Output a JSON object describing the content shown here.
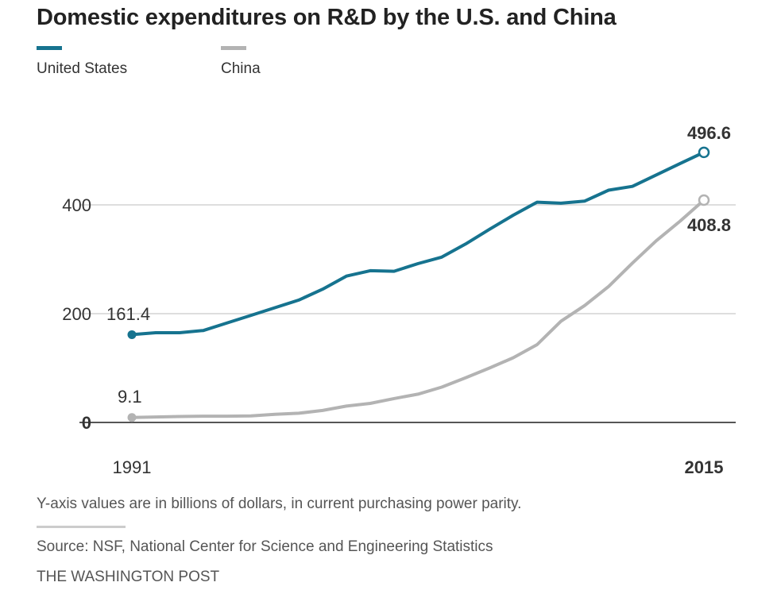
{
  "colors": {
    "us": "#16738f",
    "china": "#b3b3b3"
  },
  "chart_data": {
    "type": "line",
    "title": "Domestic expenditures on R&D by the U.S. and China",
    "x": [
      1991,
      1992,
      1993,
      1994,
      1995,
      1996,
      1997,
      1998,
      1999,
      2000,
      2001,
      2002,
      2003,
      2004,
      2005,
      2006,
      2007,
      2008,
      2009,
      2010,
      2011,
      2012,
      2013,
      2014,
      2015
    ],
    "series": [
      {
        "name": "United States",
        "values": [
          161.4,
          165.0,
          165.0,
          169.0,
          183.0,
          197.0,
          211.0,
          225.0,
          245.0,
          269.0,
          279.0,
          278.0,
          292.0,
          304.0,
          328.0,
          355.0,
          381.0,
          405.0,
          403.0,
          407.0,
          427.0,
          434.0,
          455.0,
          476.0,
          496.6
        ]
      },
      {
        "name": "China",
        "values": [
          9.1,
          10.0,
          11.0,
          11.5,
          11.5,
          12.0,
          15.0,
          17.0,
          22.0,
          30.0,
          35.0,
          44.0,
          52.0,
          65.0,
          82.0,
          100.0,
          119.0,
          143.0,
          186.0,
          215.0,
          250.0,
          293.0,
          334.0,
          370.0,
          408.8
        ]
      }
    ],
    "start_labels": [
      "161.4",
      "9.1"
    ],
    "end_labels": [
      "496.6",
      "408.8"
    ],
    "xticks": [
      "1991",
      "2015"
    ],
    "yticks": [
      0,
      200,
      400
    ],
    "ytick_labels": [
      "0",
      "200",
      "400"
    ],
    "ylim": [
      0,
      500
    ],
    "grid": true,
    "legend": "top-left"
  },
  "footer": {
    "note": "Y-axis values are in billions of dollars, in current purchasing power parity.",
    "source": "Source: NSF, National Center for Science and Engineering Statistics",
    "brand": "THE WASHINGTON POST"
  }
}
